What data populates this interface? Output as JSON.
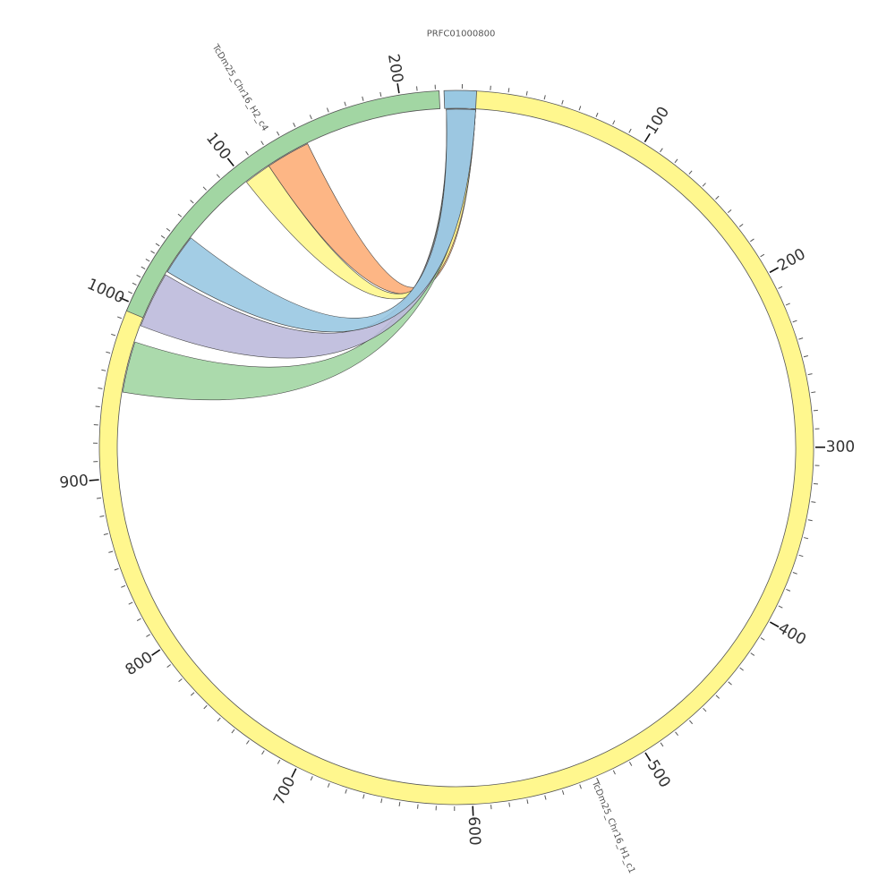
{
  "chart_data": {
    "type": "chord",
    "title": "",
    "sequences": [
      {
        "id": "h1",
        "name": "TcDm25_Chr16_H1_c1",
        "length": 1050,
        "color": "#fff78e",
        "tick_labels": [
          "100",
          "200",
          "300",
          "400",
          "500",
          "600",
          "700",
          "800",
          "900",
          "1000"
        ]
      },
      {
        "id": "h2",
        "name": "TcDm25_Chr16_H2_c4",
        "length": 222,
        "color": "#a2d6a3",
        "tick_labels": [
          "100",
          "200"
        ]
      },
      {
        "id": "prfc",
        "name": "PRFC01000800",
        "length": 18,
        "color": "#99c8e2",
        "tick_labels": []
      }
    ],
    "links": [
      {
        "from": "prfc",
        "from_range": [
          1,
          18
        ],
        "to": "h2",
        "to_range": [
          116,
          142
        ],
        "color": "#fdae78"
      },
      {
        "from": "prfc",
        "from_range": [
          1,
          18
        ],
        "to": "h2",
        "to_range": [
          100,
          116
        ],
        "color": "#fff78e"
      },
      {
        "from": "prfc",
        "from_range": [
          1,
          18
        ],
        "to": "h1",
        "to_range": [
          950,
          980
        ],
        "color": "#a2d6a3"
      },
      {
        "from": "prfc",
        "from_range": [
          1,
          18
        ],
        "to": "h1",
        "to_range": [
          990,
          1023
        ],
        "color": "#bcbadb"
      },
      {
        "from": "prfc",
        "from_range": [
          1,
          18
        ],
        "to": "h1",
        "to_range": [
          1025,
          1049
        ],
        "color": "#99c8e2"
      }
    ]
  }
}
